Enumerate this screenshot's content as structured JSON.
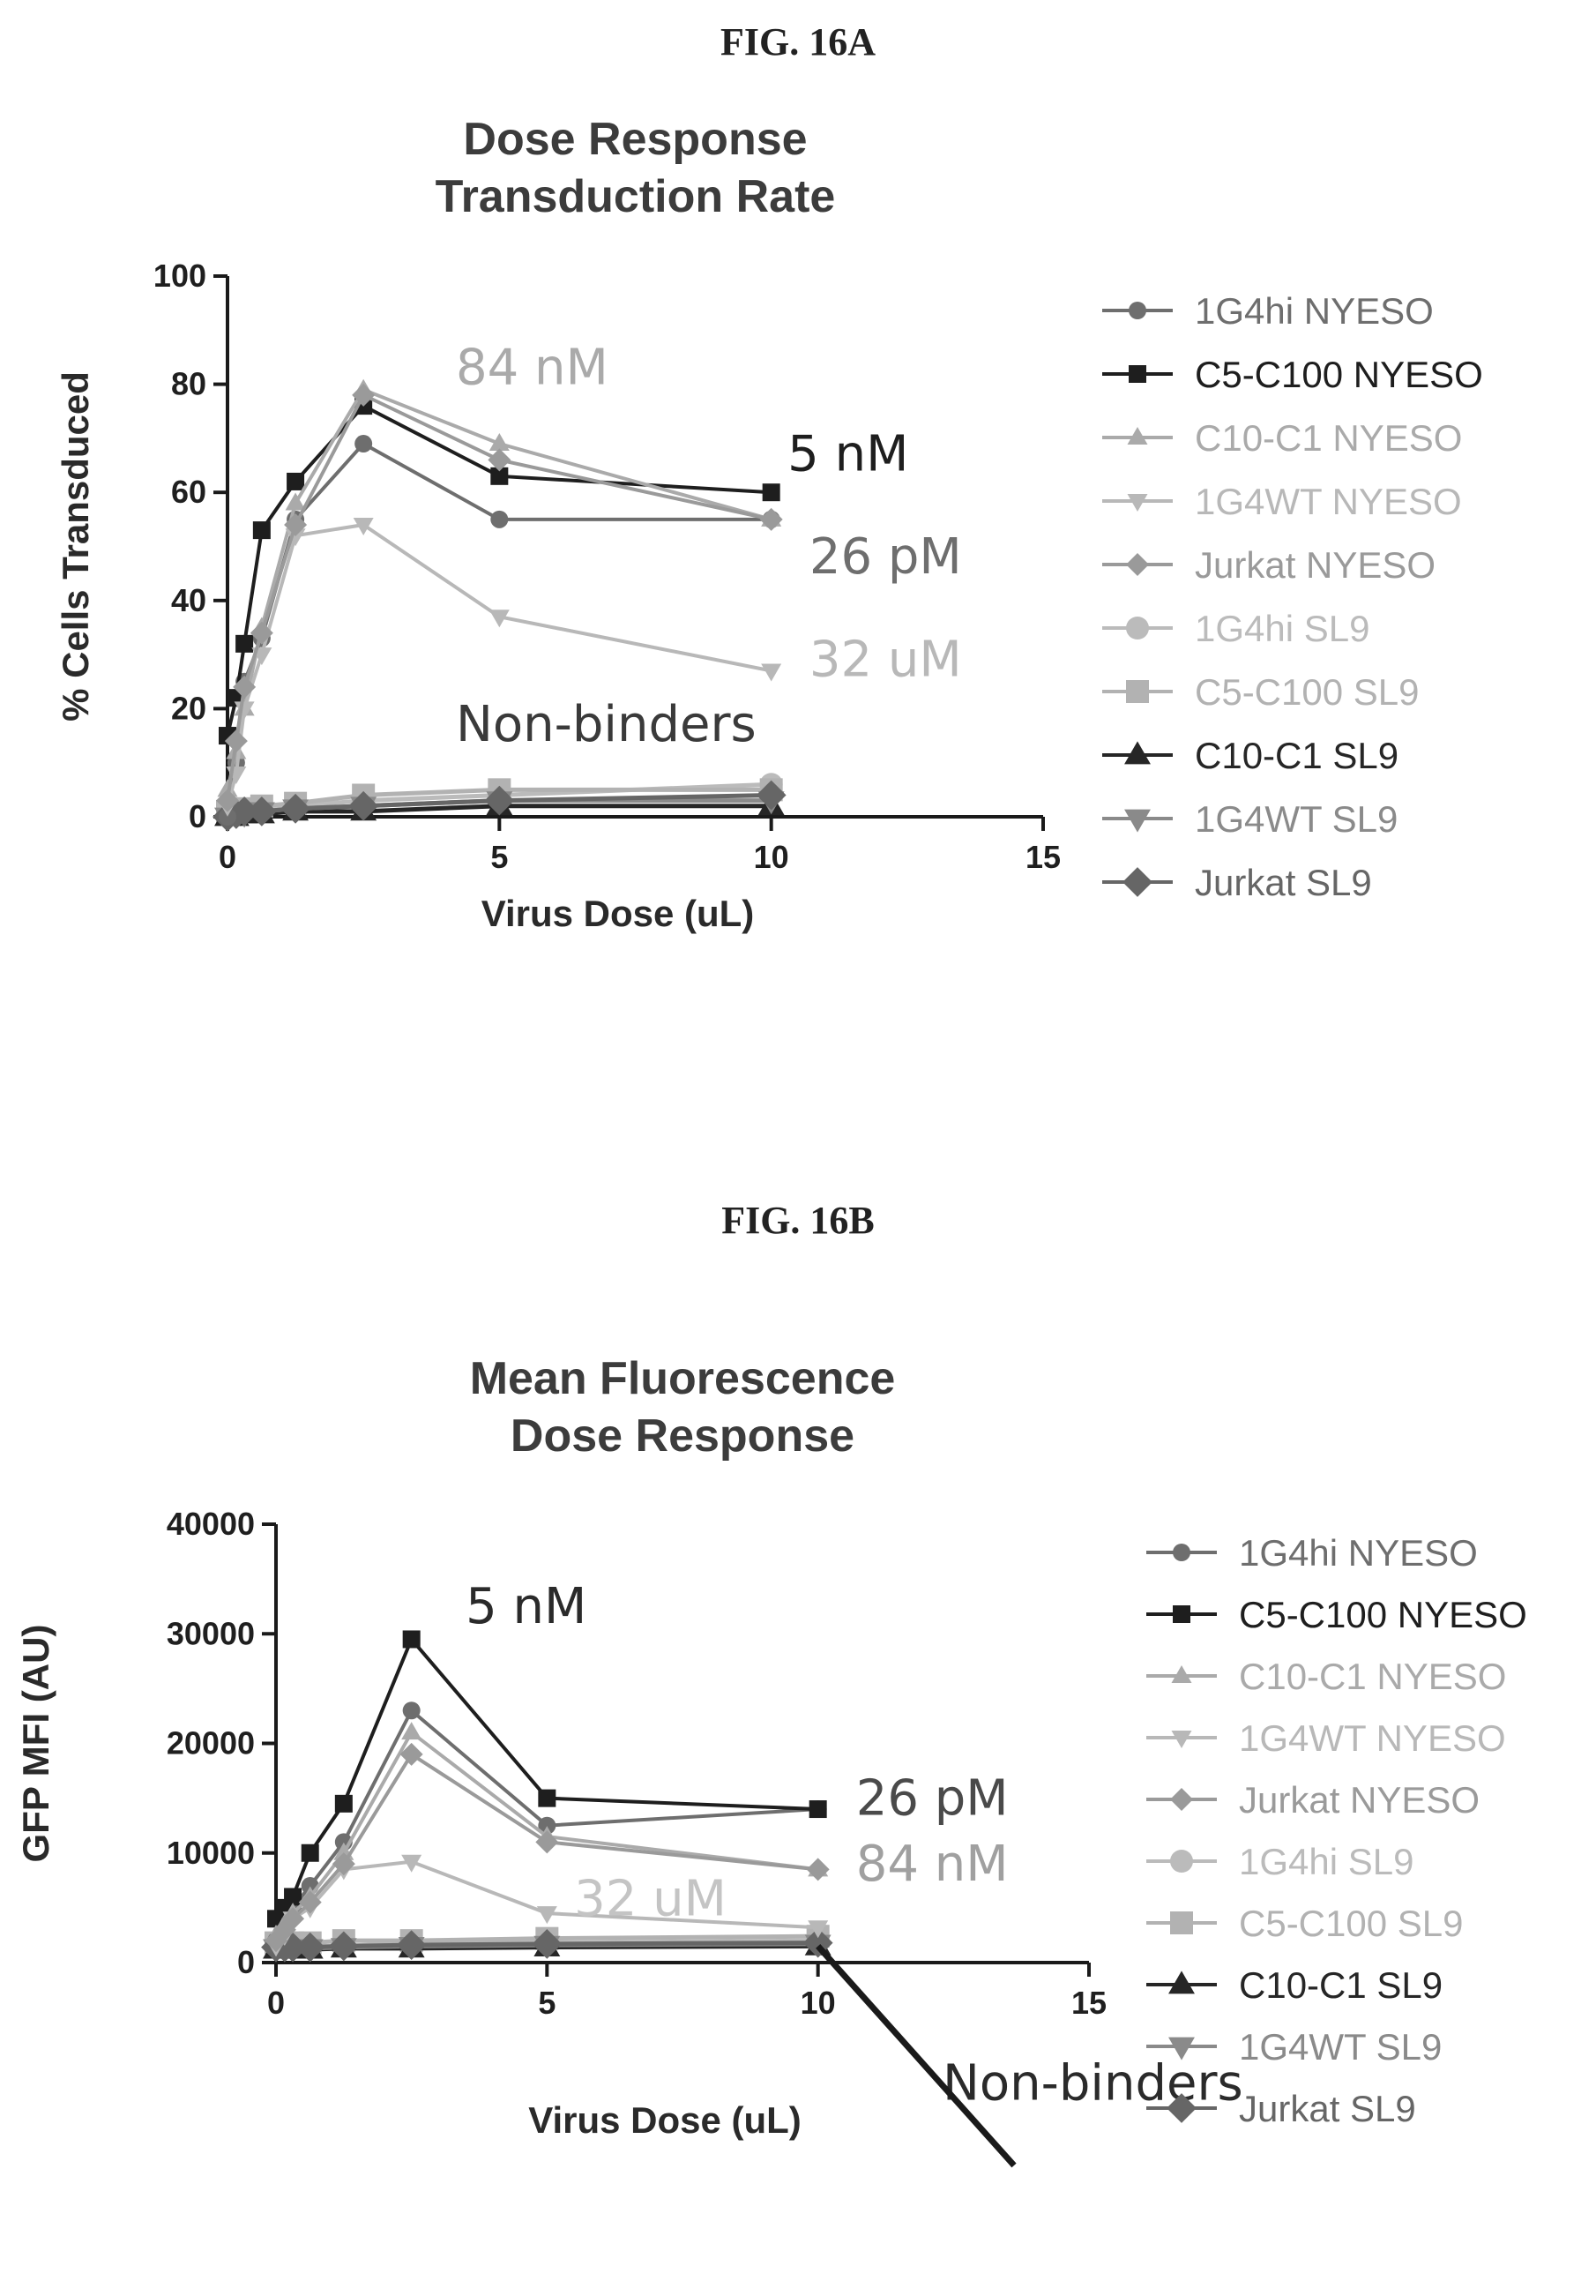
{
  "figures": [
    {
      "label": "FIG. 16A"
    },
    {
      "label": "FIG. 16B"
    }
  ],
  "series_styles": [
    {
      "name": "1G4hi NYESO",
      "color": "#6e6e6e",
      "marker": "circle",
      "size": "small"
    },
    {
      "name": "C5-C100 NYESO",
      "color": "#1e1e1e",
      "marker": "square",
      "size": "small"
    },
    {
      "name": "C10-C1 NYESO",
      "color": "#aaaaaa",
      "marker": "triangle-up",
      "size": "small"
    },
    {
      "name": "1G4WT NYESO",
      "color": "#b8b8b8",
      "marker": "triangle-down",
      "size": "small"
    },
    {
      "name": "Jurkat NYESO",
      "color": "#9a9a9a",
      "marker": "diamond",
      "size": "small"
    },
    {
      "name": "1G4hi SL9",
      "color": "#bbbbbb",
      "marker": "circle",
      "size": "large"
    },
    {
      "name": "C5-C100 SL9",
      "color": "#b2b2b2",
      "marker": "square",
      "size": "large"
    },
    {
      "name": "C10-C1 SL9",
      "color": "#262626",
      "marker": "triangle-up",
      "size": "large"
    },
    {
      "name": "1G4WT SL9",
      "color": "#8a8a8a",
      "marker": "triangle-down",
      "size": "large"
    },
    {
      "name": "Jurkat SL9",
      "color": "#666666",
      "marker": "diamond",
      "size": "large"
    }
  ],
  "chart_data": [
    {
      "type": "line",
      "title": "Dose Response\nTransduction Rate",
      "xlabel": "Virus Dose (uL)",
      "ylabel": "% Cells Transduced",
      "xlim": [
        0,
        15
      ],
      "ylim": [
        0,
        100
      ],
      "xticks": [
        0,
        5,
        10,
        15
      ],
      "yticks": [
        0,
        20,
        40,
        60,
        80,
        100
      ],
      "legend_position": "right",
      "x": [
        0,
        0.16,
        0.31,
        0.63,
        1.25,
        2.5,
        5,
        10
      ],
      "series": [
        {
          "name": "1G4hi NYESO",
          "values": [
            0,
            10,
            25,
            33,
            55,
            69,
            55,
            55
          ]
        },
        {
          "name": "C5-C100 NYESO",
          "values": [
            15,
            22,
            32,
            53,
            62,
            76,
            63,
            60
          ]
        },
        {
          "name": "C10-C1 NYESO",
          "values": [
            5,
            12,
            20,
            35,
            58,
            79,
            69,
            55
          ]
        },
        {
          "name": "1G4WT NYESO",
          "values": [
            2,
            8,
            20,
            30,
            52,
            54,
            37,
            27
          ]
        },
        {
          "name": "Jurkat NYESO",
          "values": [
            3,
            14,
            24,
            34,
            54,
            78,
            66,
            55
          ]
        },
        {
          "name": "1G4hi SL9",
          "values": [
            0.5,
            0.5,
            1,
            1,
            2,
            3,
            4,
            6
          ]
        },
        {
          "name": "C5-C100 SL9",
          "values": [
            1,
            1,
            1.5,
            2,
            2.5,
            4,
            5,
            5
          ]
        },
        {
          "name": "C10-C1 SL9",
          "values": [
            0,
            0,
            0.5,
            0.5,
            1,
            1,
            2,
            2
          ]
        },
        {
          "name": "1G4WT SL9",
          "values": [
            0,
            0.5,
            0.5,
            1,
            1.5,
            2,
            3,
            3
          ]
        },
        {
          "name": "Jurkat SL9",
          "values": [
            0,
            0.5,
            1,
            1,
            1.5,
            2,
            3,
            4
          ]
        }
      ],
      "annotations": [
        {
          "text": "84 nM",
          "x": 4.2,
          "y": 80,
          "color": "#aaaaaa"
        },
        {
          "text": "5 nM",
          "x": 10.3,
          "y": 64,
          "color": "#1e1e1e"
        },
        {
          "text": "26 pM",
          "x": 10.7,
          "y": 45,
          "color": "#6e6e6e"
        },
        {
          "text": "32 uM",
          "x": 10.7,
          "y": 26,
          "color": "#b8b8b8"
        },
        {
          "text": "Non-binders",
          "x": 4.2,
          "y": 14,
          "color": "#3a3a3a"
        }
      ]
    },
    {
      "type": "line",
      "title": "Mean Fluorescence\nDose Response",
      "xlabel": "Virus Dose (uL)",
      "ylabel": "GFP MFI (AU)",
      "xlim": [
        0,
        15
      ],
      "ylim": [
        0,
        40000
      ],
      "xticks": [
        0,
        5,
        10,
        15
      ],
      "yticks": [
        0,
        10000,
        20000,
        30000,
        40000
      ],
      "legend_position": "right",
      "x": [
        0,
        0.16,
        0.31,
        0.63,
        1.25,
        2.5,
        5,
        10
      ],
      "series": [
        {
          "name": "1G4hi NYESO",
          "values": [
            2000,
            3500,
            5000,
            7000,
            11000,
            23000,
            12500,
            14000
          ]
        },
        {
          "name": "C5-C100 NYESO",
          "values": [
            4000,
            5000,
            6000,
            10000,
            14500,
            29500,
            15000,
            14000
          ]
        },
        {
          "name": "C10-C1 NYESO",
          "values": [
            2500,
            3500,
            4500,
            6000,
            10000,
            21000,
            11500,
            8500
          ]
        },
        {
          "name": "1G4WT NYESO",
          "values": [
            1500,
            2500,
            4000,
            5000,
            8500,
            9200,
            4500,
            3200
          ]
        },
        {
          "name": "Jurkat NYESO",
          "values": [
            2000,
            3000,
            4000,
            5500,
            9000,
            19000,
            11000,
            8500
          ]
        },
        {
          "name": "1G4hi SL9",
          "values": [
            1500,
            1500,
            1500,
            1500,
            1500,
            1800,
            1800,
            2000
          ]
        },
        {
          "name": "C5-C100 SL9",
          "values": [
            1800,
            1800,
            1800,
            1800,
            2000,
            2000,
            2200,
            2400
          ]
        },
        {
          "name": "C10-C1 SL9",
          "values": [
            1200,
            1200,
            1200,
            1200,
            1300,
            1300,
            1400,
            1500
          ]
        },
        {
          "name": "1G4WT SL9",
          "values": [
            1300,
            1300,
            1300,
            1300,
            1400,
            1500,
            1600,
            1700
          ]
        },
        {
          "name": "Jurkat SL9",
          "values": [
            1400,
            1400,
            1400,
            1400,
            1500,
            1600,
            1700,
            1800
          ]
        }
      ],
      "annotations": [
        {
          "text": "5 nM",
          "x": 3.5,
          "y": 31000,
          "color": "#2a2a2a"
        },
        {
          "text": "26 pM",
          "x": 10.7,
          "y": 13500,
          "color": "#4a4a4a"
        },
        {
          "text": "84 nM",
          "x": 10.7,
          "y": 7500,
          "color": "#a0a0a0"
        },
        {
          "text": "32 uM",
          "x": 5.5,
          "y": 4300,
          "color": "#c4c4c4"
        },
        {
          "text": "Non-binders",
          "x": 12.3,
          "y": -12500,
          "color": "#2a2a2a"
        }
      ]
    }
  ]
}
